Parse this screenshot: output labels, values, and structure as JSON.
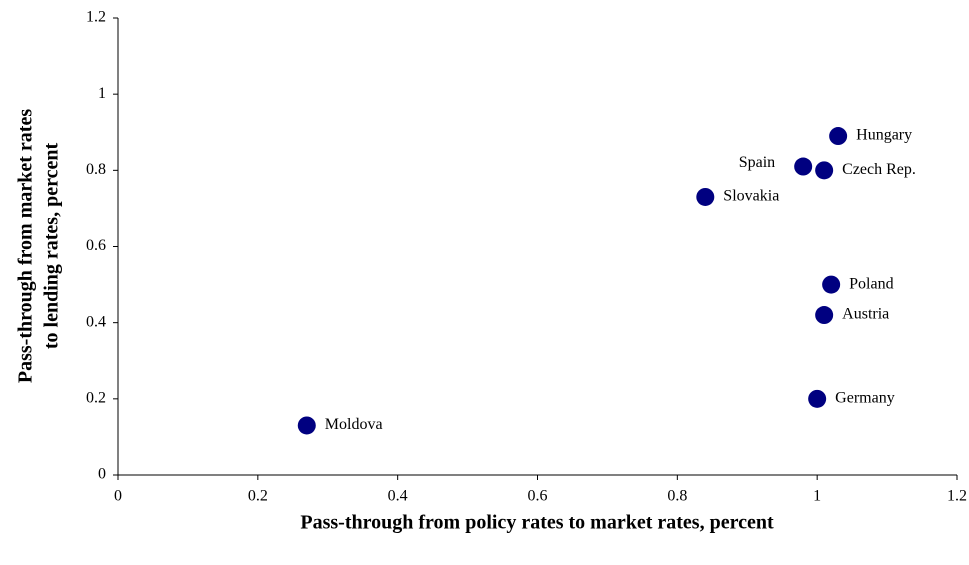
{
  "chart_data": {
    "type": "scatter",
    "x_label": "Pass-through from policy rates to market rates, percent",
    "y_label": [
      "Pass-through from market rates",
      "to lending rates, percent"
    ],
    "labels": [
      "Hungary",
      "Spain",
      "Czech Rep.",
      "Slovakia",
      "Poland",
      "Austria",
      "Germany",
      "Moldova"
    ],
    "x": [
      1.03,
      0.98,
      1.01,
      0.84,
      1.02,
      1.01,
      1.0,
      0.27
    ],
    "values": [
      0.89,
      0.81,
      0.8,
      0.73,
      0.5,
      0.42,
      0.2,
      0.13
    ],
    "color": "#000080",
    "xlim": [
      0,
      1.2
    ],
    "xticks": [
      0,
      0.2,
      0.4,
      0.6,
      0.8,
      1,
      1.2
    ],
    "ylim": [
      0,
      1.2
    ],
    "yticks": [
      0,
      0.2,
      0.4,
      0.6,
      0.8,
      1,
      1.2
    ]
  }
}
